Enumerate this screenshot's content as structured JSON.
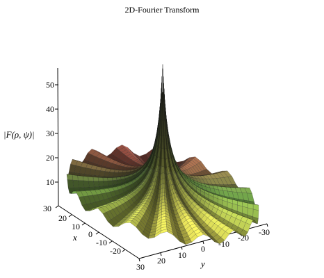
{
  "chart_data": {
    "type": "surface3d",
    "title": "2D-Fourier Transform",
    "zlabel": "|F(ρ, ψ)|",
    "xlabel": "x",
    "ylabel": "y",
    "z_ticks": [
      "10",
      "20",
      "30",
      "40",
      "50"
    ],
    "x_ticks": [
      "30",
      "20",
      "10",
      "0",
      "-10",
      "-20"
    ],
    "y_ticks": [
      "30",
      "20",
      "10",
      "0",
      "-10",
      "-20",
      "-30"
    ],
    "xlim": [
      -30,
      30
    ],
    "ylim": [
      -30,
      30
    ],
    "zlim": [
      0,
      57
    ],
    "peak": {
      "x": 0,
      "y": 0,
      "z": 57
    },
    "surface": "radially symmetric sharp central peak decaying to a wavy rim of ripples",
    "colors": {
      "background": "#ffffff",
      "axis": "#000000",
      "surface_yellow": "#e8e35a",
      "surface_green": "#6fa84a",
      "surface_dark": "#1e2a18",
      "surface_red": "#b5514c"
    }
  }
}
